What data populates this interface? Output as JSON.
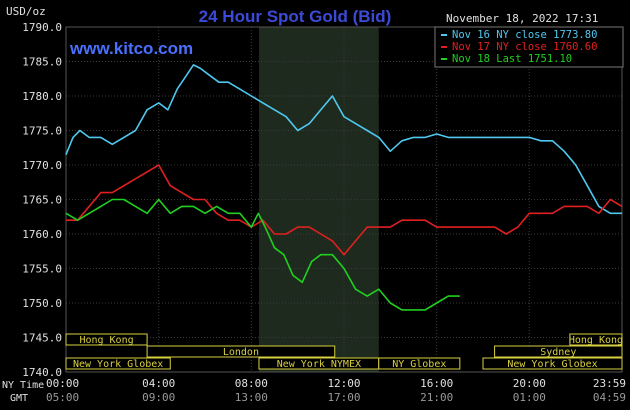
{
  "header": {
    "title": "24 Hour Spot Gold (Bid)",
    "currency_label": "USD/oz",
    "timestamp": "November 18, 2022 17:31",
    "watermark": "www.kitco.com"
  },
  "legend": [
    {
      "text": "Nov 16 NY close 1773.80",
      "color": "#4fc8f0"
    },
    {
      "text": "Nov 17 NY close 1760.60",
      "color": "#e02020"
    },
    {
      "text": "Nov 18 Last 1751.10",
      "color": "#20d020"
    }
  ],
  "time_labels": {
    "ny_label": "NY Time",
    "gmt_label": "GMT"
  },
  "sessions": [
    {
      "name": "Hong Kong",
      "start_hour": 0,
      "end_hour": 3.5,
      "row": 0
    },
    {
      "name": "Hong Kong",
      "start_hour": 21.75,
      "end_hour": 24,
      "row": 0
    },
    {
      "name": "London",
      "start_hour": 3.5,
      "end_hour": 11.6,
      "row": 1
    },
    {
      "name": "Sydney",
      "start_hour": 18.5,
      "end_hour": 24,
      "row": 1
    },
    {
      "name": "New York Globex",
      "start_hour": 0,
      "end_hour": 4.5,
      "row": 2
    },
    {
      "name": "New York NYMEX",
      "start_hour": 8.33,
      "end_hour": 13.5,
      "row": 2
    },
    {
      "name": "NY Globex",
      "start_hour": 13.5,
      "end_hour": 17.0,
      "row": 2
    },
    {
      "name": "New York Globex",
      "start_hour": 18.0,
      "end_hour": 24,
      "row": 2
    }
  ],
  "colors": {
    "background": "#000000",
    "grid": "#3a3a3a",
    "axis_text": "#e0e0e0",
    "title": "#3c4ad8",
    "watermark": "#4a70ff",
    "session": "#d8d040",
    "nymex_shade": "#1e2a1e"
  },
  "chart_data": {
    "type": "line",
    "title": "24 Hour Spot Gold (Bid)",
    "ylabel": "USD/oz",
    "ylim": [
      1740.0,
      1790.0
    ],
    "xlim": [
      0,
      24
    ],
    "y_ticks": [
      "1740.0",
      "1745.0",
      "1750.0",
      "1755.0",
      "1760.0",
      "1765.0",
      "1770.0",
      "1775.0",
      "1780.0",
      "1785.0",
      "1790.0"
    ],
    "x_ticks_ny": [
      "00:00",
      "04:00",
      "08:00",
      "12:00",
      "16:00",
      "20:00",
      "23:59"
    ],
    "x_ticks_gmt": [
      "05:00",
      "09:00",
      "13:00",
      "17:00",
      "21:00",
      "01:00",
      "04:59"
    ],
    "shaded_region": [
      8.33,
      13.5
    ],
    "series": [
      {
        "name": "Nov 16 NY close 1773.80",
        "color": "#4fc8f0",
        "x": [
          0,
          0.3,
          0.6,
          1,
          1.5,
          2,
          2.5,
          3,
          3.5,
          4,
          4.4,
          4.8,
          5.2,
          5.5,
          5.8,
          6.2,
          6.6,
          7,
          7.5,
          8,
          8.5,
          9,
          9.5,
          10,
          10.5,
          11,
          11.5,
          12,
          12.5,
          13,
          13.5,
          14,
          14.5,
          15,
          15.5,
          16,
          16.5,
          17,
          17.5,
          18,
          18.5,
          19,
          19.5,
          20,
          20.5,
          21,
          21.5,
          22,
          22.5,
          23,
          23.5,
          24
        ],
        "y": [
          1771.5,
          1774,
          1775,
          1774,
          1774,
          1773,
          1774,
          1775,
          1778,
          1779,
          1778,
          1781,
          1783,
          1784.5,
          1784,
          1783,
          1782,
          1782,
          1781,
          1780,
          1779,
          1778,
          1777,
          1775,
          1776,
          1778,
          1780,
          1777,
          1776,
          1775,
          1774,
          1772,
          1773.5,
          1774,
          1774,
          1774.5,
          1774,
          1774,
          1774,
          1774,
          1774,
          1774,
          1774,
          1774,
          1773.5,
          1773.5,
          1772,
          1770,
          1767,
          1764,
          1763,
          1763
        ]
      },
      {
        "name": "Nov 17 NY close 1760.60",
        "color": "#e02020",
        "x": [
          0,
          0.5,
          1,
          1.5,
          2,
          2.5,
          3,
          3.5,
          4,
          4.5,
          5,
          5.5,
          6,
          6.5,
          7,
          7.5,
          8,
          8.5,
          9,
          9.5,
          10,
          10.5,
          11,
          11.5,
          12,
          12.5,
          13,
          13.5,
          14,
          14.5,
          15,
          15.5,
          16,
          16.5,
          17,
          17.5,
          18,
          18.5,
          19,
          19.5,
          20,
          20.5,
          21,
          21.5,
          22,
          22.5,
          23,
          23.5,
          24
        ],
        "y": [
          1762,
          1762,
          1764,
          1766,
          1766,
          1767,
          1768,
          1769,
          1770,
          1767,
          1766,
          1765,
          1765,
          1763,
          1762,
          1762,
          1761,
          1762,
          1760,
          1760,
          1761,
          1761,
          1760,
          1759,
          1757,
          1759,
          1761,
          1761,
          1761,
          1762,
          1762,
          1762,
          1761,
          1761,
          1761,
          1761,
          1761,
          1761,
          1760,
          1761,
          1763,
          1763,
          1763,
          1764,
          1764,
          1764,
          1763,
          1765,
          1764
        ]
      },
      {
        "name": "Nov 18 Last 1751.10",
        "color": "#20d020",
        "x": [
          0,
          0.5,
          1,
          1.5,
          2,
          2.5,
          3,
          3.5,
          4,
          4.5,
          5,
          5.5,
          6,
          6.5,
          7,
          7.5,
          8,
          8.3,
          8.6,
          9,
          9.4,
          9.8,
          10.2,
          10.6,
          11,
          11.5,
          12,
          12.5,
          13,
          13.5,
          14,
          14.5,
          15,
          15.5,
          16,
          16.5,
          17
        ],
        "y": [
          1763,
          1762,
          1763,
          1764,
          1765,
          1765,
          1764,
          1763,
          1765,
          1763,
          1764,
          1764,
          1763,
          1764,
          1763,
          1763,
          1761,
          1763,
          1761,
          1758,
          1757,
          1754,
          1753,
          1756,
          1757,
          1757,
          1755,
          1752,
          1751,
          1752,
          1750,
          1749,
          1749,
          1749,
          1750,
          1751,
          1751
        ]
      }
    ]
  }
}
